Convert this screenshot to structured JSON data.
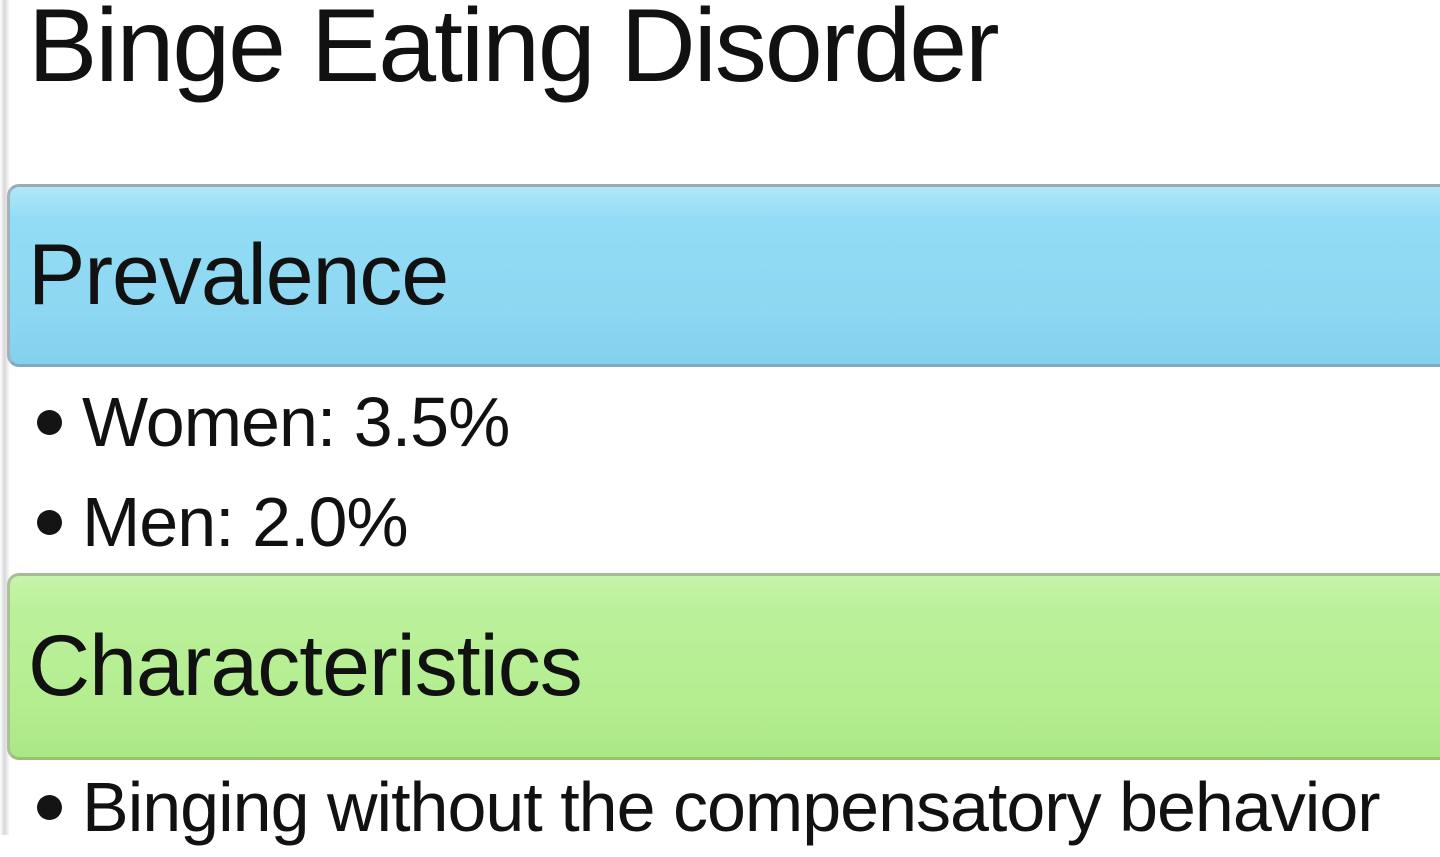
{
  "slide": {
    "title": "Binge Eating Disorder",
    "text_color": "#111111",
    "sections": [
      {
        "heading": "Prevalence",
        "fill_color": "#8ed9f4",
        "bullets": [
          "Women: 3.5%",
          "Men: 2.0%"
        ]
      },
      {
        "heading": "Characteristics",
        "fill_color": "#b5ee92",
        "bullets": [
          "Binging without the compensatory behavior"
        ]
      }
    ]
  }
}
